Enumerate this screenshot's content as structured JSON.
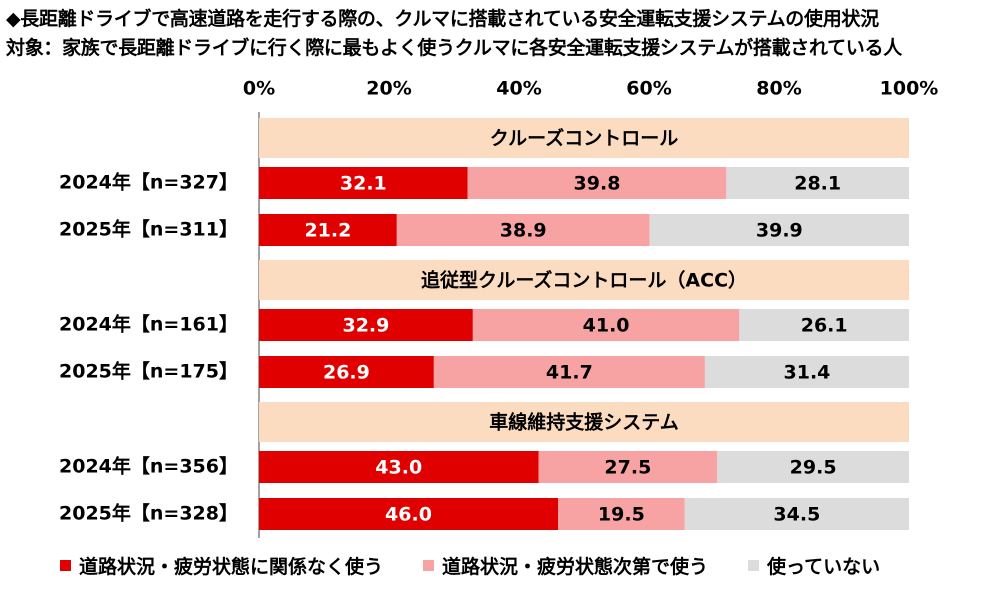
{
  "title_line1": "◆長距離ドライブで高速道路を走行する際の、クルマに搭載されている安全運転支援システムの使用状況",
  "title_line2": "対象：家族で長距離ドライブに行く際に最もよく使うクルマに各安全運転支援システムが搭載されている人",
  "colors": {
    "series1": "#e00000",
    "series2": "#f7a3a3",
    "series3": "#dcdcdc",
    "group_header": "#fbdcc0"
  },
  "legend": [
    {
      "label": "道路状況・疲労状態に関係なく使う",
      "color": "#e00000"
    },
    {
      "label": "道路状況・疲労状態次第で使う",
      "color": "#f7a3a3"
    },
    {
      "label": "使っていない",
      "color": "#dcdcdc"
    }
  ],
  "chart_data": {
    "type": "bar",
    "orientation": "horizontal",
    "stacked": "percent",
    "xlim": [
      0,
      100
    ],
    "x_ticks": [
      "0%",
      "20%",
      "40%",
      "60%",
      "80%",
      "100%"
    ],
    "grid": false,
    "legend_position": "bottom",
    "series_names": [
      "道路状況・疲労状態に関係なく使う",
      "道路状況・疲労状態次第で使う",
      "使っていない"
    ],
    "groups": [
      {
        "name": "クルーズコントロール",
        "rows": [
          {
            "label": "2024年【n=327】",
            "values": [
              32.1,
              39.8,
              28.1
            ]
          },
          {
            "label": "2025年【n=311】",
            "values": [
              21.2,
              38.9,
              39.9
            ]
          }
        ]
      },
      {
        "name": "追従型クルーズコントロール（ACC）",
        "rows": [
          {
            "label": "2024年【n=161】",
            "values": [
              32.9,
              41.0,
              26.1
            ]
          },
          {
            "label": "2025年【n=175】",
            "values": [
              26.9,
              41.7,
              31.4
            ]
          }
        ]
      },
      {
        "name": "車線維持支援システム",
        "rows": [
          {
            "label": "2024年【n=356】",
            "values": [
              43.0,
              27.5,
              29.5
            ]
          },
          {
            "label": "2025年【n=328】",
            "values": [
              46.0,
              19.5,
              34.5
            ]
          }
        ]
      }
    ]
  }
}
